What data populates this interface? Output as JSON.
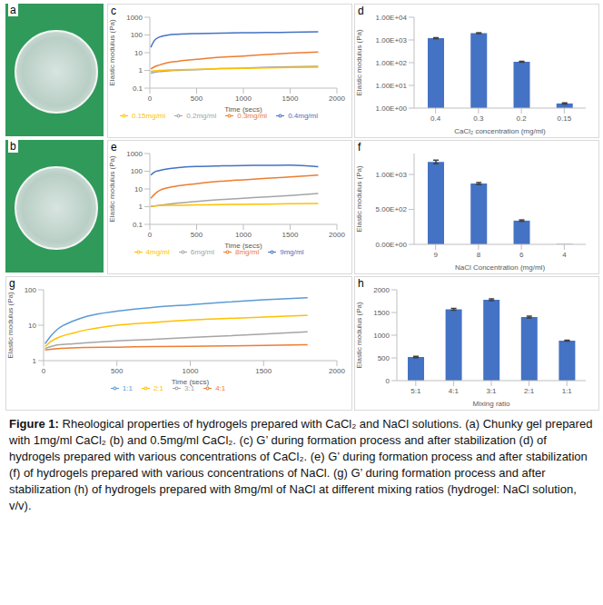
{
  "photos": [
    {
      "panel": "a"
    },
    {
      "panel": "b"
    }
  ],
  "chart_data": [
    {
      "panel": "c",
      "type": "line",
      "x_label": "Time (secs)",
      "y_label": "Elastic modulus (Pa)",
      "log": "y",
      "grid": false,
      "legend": "bottom",
      "xlim": [
        0,
        2000
      ],
      "xticks": [
        0,
        500,
        1000,
        1500,
        2000
      ],
      "ylim": [
        0.1,
        1000
      ],
      "yticks": [
        0.1,
        1,
        10,
        100,
        1000
      ],
      "x": [
        10,
        50,
        100,
        200,
        300,
        500,
        750,
        1000,
        1250,
        1500,
        1800
      ],
      "series": [
        {
          "name": "0.4mg/ml",
          "color": "#4472c4",
          "values": [
            20,
            50,
            75,
            100,
            110,
            120,
            128,
            133,
            138,
            142,
            150
          ]
        },
        {
          "name": "0.3mg/ml",
          "color": "#ed7d31",
          "values": [
            1.2,
            1.6,
            2,
            2.8,
            3.3,
            4.2,
            5.5,
            6.5,
            8,
            9.5,
            11
          ]
        },
        {
          "name": "0.2mg/ml",
          "color": "#a5a5a5",
          "values": [
            0.7,
            0.8,
            0.85,
            0.95,
            1.0,
            1.1,
            1.25,
            1.35,
            1.5,
            1.6,
            1.7
          ]
        },
        {
          "name": "0.15mg/ml",
          "color": "#ffc000",
          "values": [
            0.9,
            0.95,
            1.0,
            1.05,
            1.1,
            1.15,
            1.25,
            1.3,
            1.4,
            1.45,
            1.5
          ]
        }
      ]
    },
    {
      "panel": "d",
      "type": "bar",
      "x_label": "CaCl₂ concentration (mg/ml)",
      "y_label": "Elastic modulus (Pa)",
      "log": "y",
      "grid": false,
      "color": "#4472c4",
      "categories": [
        "0.4",
        "0.3",
        "0.2",
        "0.15"
      ],
      "values": [
        1200,
        2000,
        110,
        1.6
      ],
      "errors": [
        60,
        80,
        5,
        0.1
      ],
      "ylim": [
        1,
        10000
      ],
      "yticks": [
        {
          "value": 1,
          "label": "1.00E+00"
        },
        {
          "value": 10,
          "label": "1.00E+01"
        },
        {
          "value": 100,
          "label": "1.00E+02"
        },
        {
          "value": 1000,
          "label": "1.00E+03"
        },
        {
          "value": 10000,
          "label": "1.00E+04"
        }
      ]
    },
    {
      "panel": "e",
      "type": "line",
      "x_label": "Time (secs)",
      "y_label": "Elastic modulus (Pa)",
      "log": "y",
      "grid": false,
      "legend": "bottom",
      "xlim": [
        0,
        2000
      ],
      "xticks": [
        0,
        500,
        1000,
        1500,
        2000
      ],
      "ylim": [
        0.1,
        1000
      ],
      "yticks": [
        0.1,
        1,
        10,
        100,
        1000
      ],
      "x": [
        10,
        50,
        100,
        200,
        300,
        500,
        750,
        1000,
        1250,
        1500,
        1800
      ],
      "series": [
        {
          "name": "9mg/ml",
          "color": "#4472c4",
          "values": [
            60,
            90,
            110,
            140,
            160,
            185,
            200,
            210,
            215,
            220,
            180
          ]
        },
        {
          "name": "8mg/ml",
          "color": "#ed7d31",
          "values": [
            3,
            5,
            8,
            12,
            15,
            20,
            27,
            33,
            40,
            48,
            60
          ]
        },
        {
          "name": "6mg/ml",
          "color": "#a5a5a5",
          "values": [
            1,
            1.1,
            1.2,
            1.4,
            1.6,
            2,
            2.5,
            3,
            3.6,
            4.3,
            5.5
          ]
        },
        {
          "name": "4mg/ml",
          "color": "#ffc000",
          "values": [
            1.1,
            1.1,
            1.15,
            1.2,
            1.2,
            1.25,
            1.3,
            1.35,
            1.4,
            1.45,
            1.5
          ]
        }
      ]
    },
    {
      "panel": "f",
      "type": "bar",
      "x_label": "NaCl Concentration (mg/ml)",
      "y_label": "Elastic modulus (Pa)",
      "grid": false,
      "color": "#4472c4",
      "categories": [
        "9",
        "8",
        "6",
        "4"
      ],
      "values": [
        1180,
        870,
        340,
        5
      ],
      "errors": [
        25,
        15,
        10,
        0
      ],
      "ylim": [
        0,
        1300
      ],
      "yticks": [
        {
          "value": 0,
          "label": "0.00E+00"
        },
        {
          "value": 500,
          "label": "5.00E+02"
        },
        {
          "value": 1000,
          "label": "1.00E+03"
        }
      ]
    },
    {
      "panel": "g",
      "type": "line",
      "x_label": "Time (secs)",
      "y_label": "Elastic modulus (Pa)",
      "log": "y",
      "grid": false,
      "legend": "bottom",
      "xlim": [
        0,
        2000
      ],
      "xticks": [
        0,
        500,
        1000,
        1500,
        2000
      ],
      "ylim": [
        1,
        100
      ],
      "yticks": [
        1,
        10,
        100
      ],
      "x": [
        10,
        50,
        100,
        200,
        300,
        500,
        750,
        1000,
        1250,
        1500,
        1800
      ],
      "series": [
        {
          "name": "4:1",
          "color": "#ed7d31",
          "values": [
            2,
            2.1,
            2.2,
            2.3,
            2.35,
            2.4,
            2.5,
            2.55,
            2.6,
            2.7,
            2.8
          ]
        },
        {
          "name": "3:1",
          "color": "#a5a5a5",
          "values": [
            2.2,
            2.5,
            2.8,
            3,
            3.2,
            3.6,
            4,
            4.5,
            5,
            5.6,
            6.5
          ]
        },
        {
          "name": "2:1",
          "color": "#ffc000",
          "values": [
            2.5,
            3.5,
            4.5,
            6,
            7.5,
            10,
            12,
            14,
            15.5,
            17,
            19
          ]
        },
        {
          "name": "1:1",
          "color": "#5b9bd5",
          "values": [
            3,
            5,
            8,
            13,
            18,
            25,
            32,
            38,
            45,
            52,
            60
          ]
        }
      ]
    },
    {
      "panel": "h",
      "type": "bar",
      "x_label": "Mixing ratio",
      "y_label": "Elastic modulus (Pa)",
      "grid": false,
      "color": "#4472c4",
      "categories": [
        "5:1",
        "4:1",
        "3:1",
        "2:1",
        "1:1"
      ],
      "values": [
        520,
        1570,
        1780,
        1400,
        880
      ],
      "errors": [
        15,
        20,
        20,
        20,
        10
      ],
      "ylim": [
        0,
        2000
      ],
      "yticks": [
        0,
        500,
        1000,
        1500,
        2000
      ]
    }
  ],
  "caption": {
    "label": "Figure 1:",
    "text": "Rheological properties of hydrogels prepared with CaCl₂ and NaCl solutions. (a) Chunky gel prepared with 1mg/ml CaCl₂ (b) and 0.5mg/ml CaCl₂. (c) G’ during formation process and after stabilization (d) of hydrogels prepared with various concentrations of CaCl₂. (e) G’ during formation process and after stabilization (f) of hydrogels prepared with various concentrations of NaCl. (g) G’ during formation process and after stabilization (h) of hydrogels prepared with 8mg/ml of NaCl at different mixing ratios (hydrogel: NaCl solution, v/v)."
  }
}
